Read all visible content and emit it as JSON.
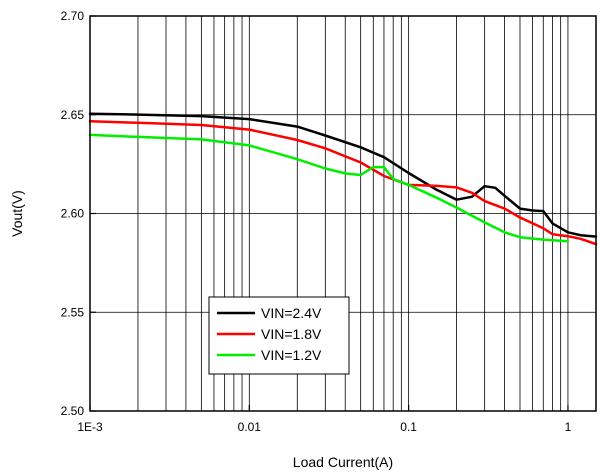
{
  "chart_data": {
    "type": "line",
    "xlabel": "Load Current(A)",
    "ylabel": "Vout(V)",
    "xscale": "log",
    "xlim": [
      0.001,
      1.5
    ],
    "ylim": [
      2.5,
      2.7
    ],
    "grid": true,
    "legend_position": "bottom-left",
    "x_ticks": [
      {
        "value": 0.001,
        "label": "1E-3"
      },
      {
        "value": 0.01,
        "label": "0.01"
      },
      {
        "value": 0.1,
        "label": "0.1"
      },
      {
        "value": 1,
        "label": "1"
      }
    ],
    "y_ticks": [
      {
        "value": 2.5,
        "label": "2.50"
      },
      {
        "value": 2.55,
        "label": "2.55"
      },
      {
        "value": 2.6,
        "label": "2.60"
      },
      {
        "value": 2.65,
        "label": "2.65"
      },
      {
        "value": 2.7,
        "label": "2.70"
      }
    ],
    "series": [
      {
        "name": "VIN=2.4V",
        "color": "#000000",
        "x": [
          0.001,
          0.002,
          0.005,
          0.01,
          0.02,
          0.03,
          0.05,
          0.07,
          0.1,
          0.15,
          0.2,
          0.25,
          0.3,
          0.35,
          0.4,
          0.5,
          0.6,
          0.7,
          0.8,
          1.0,
          1.2,
          1.5
        ],
        "y": [
          2.6505,
          2.6501,
          2.6493,
          2.6478,
          2.644,
          2.6395,
          2.6335,
          2.6285,
          2.6205,
          2.612,
          2.607,
          2.6085,
          2.6138,
          2.613,
          2.609,
          2.6025,
          2.6015,
          2.6012,
          2.595,
          2.5905,
          2.589,
          2.5883
        ]
      },
      {
        "name": "VIN=1.8V",
        "color": "#ff0000",
        "x": [
          0.001,
          0.002,
          0.005,
          0.01,
          0.02,
          0.03,
          0.05,
          0.07,
          0.1,
          0.15,
          0.2,
          0.25,
          0.3,
          0.4,
          0.5,
          0.7,
          0.8,
          1.0,
          1.2,
          1.5
        ],
        "y": [
          2.6467,
          2.6459,
          2.6448,
          2.6425,
          2.6372,
          2.633,
          2.6258,
          2.619,
          2.6145,
          2.614,
          2.6132,
          2.6105,
          2.6063,
          2.6025,
          2.598,
          2.5925,
          2.5895,
          2.5885,
          2.5872,
          2.5845
        ]
      },
      {
        "name": "VIN=1.2V",
        "color": "#00ee00",
        "x": [
          0.001,
          0.002,
          0.005,
          0.01,
          0.02,
          0.03,
          0.04,
          0.05,
          0.06,
          0.07,
          0.08,
          0.1,
          0.15,
          0.2,
          0.3,
          0.4,
          0.5,
          0.7,
          1.0
        ],
        "y": [
          2.6398,
          2.6388,
          2.6375,
          2.6345,
          2.6275,
          2.6228,
          2.6203,
          2.6195,
          2.6235,
          2.6235,
          2.6175,
          2.6145,
          2.608,
          2.603,
          2.5955,
          2.5905,
          2.588,
          2.5868,
          2.586
        ]
      }
    ]
  }
}
